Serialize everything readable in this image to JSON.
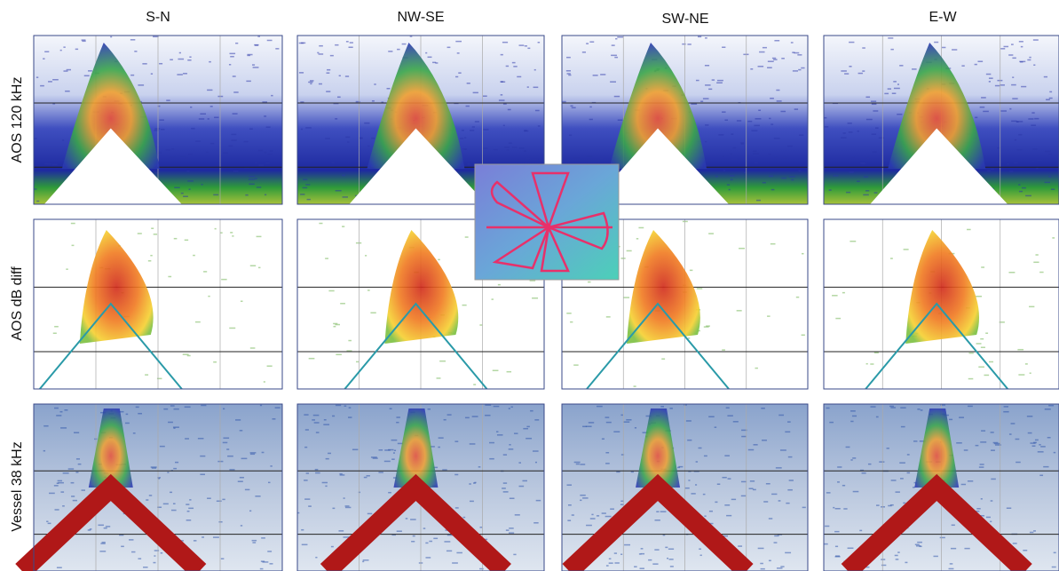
{
  "columns": [
    "S-N",
    "NW-SE",
    "SW-NE",
    "E-W"
  ],
  "rows": [
    "AOS 120 kHz",
    "AOS dB diff",
    "Vessel 38 kHz"
  ]
}
